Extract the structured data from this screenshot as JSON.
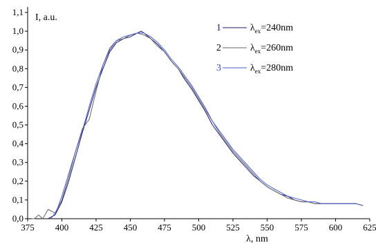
{
  "chart_data": {
    "type": "line",
    "xlabel": "λ, nm",
    "ylabel": "I, a.u.",
    "xlim": [
      375,
      625
    ],
    "ylim": [
      0.0,
      1.1
    ],
    "x_ticks": [
      375,
      400,
      425,
      450,
      475,
      500,
      525,
      550,
      575,
      600,
      625
    ],
    "x_tick_labels": [
      "375",
      "400",
      "425",
      "450",
      "475",
      "500",
      "525",
      "550",
      "575",
      "600",
      "625"
    ],
    "y_ticks": [
      0.0,
      0.1,
      0.2,
      0.3,
      0.4,
      0.5,
      0.6,
      0.7,
      0.8,
      0.9,
      1.0,
      1.1
    ],
    "y_tick_labels": [
      "0,0",
      "0,1",
      "0,2",
      "0,3",
      "0,4",
      "0,5",
      "0,6",
      "0,7",
      "0,8",
      "0,9",
      "1,0",
      "1,1"
    ],
    "grid": false,
    "legend_position": "top-right",
    "series": [
      {
        "number": "1",
        "label_prefix": "λ",
        "label_sub": "ex",
        "label_suffix": "=240nm",
        "color": "#1a1a6e",
        "number_color": "#1a1a6e",
        "x": [
          390,
          395,
          400,
          405,
          410,
          415,
          420,
          425,
          430,
          435,
          440,
          445,
          450,
          455,
          458,
          460,
          465,
          470,
          475,
          480,
          485,
          490,
          495,
          500,
          505,
          510,
          515,
          520,
          525,
          530,
          535,
          540,
          545,
          550,
          555,
          560,
          565,
          570,
          575,
          580,
          585,
          590,
          595,
          600,
          605,
          610,
          615,
          620
        ],
        "y": [
          0.0,
          0.02,
          0.09,
          0.2,
          0.33,
          0.46,
          0.58,
          0.7,
          0.8,
          0.89,
          0.94,
          0.96,
          0.97,
          0.99,
          1.0,
          0.99,
          0.96,
          0.93,
          0.89,
          0.84,
          0.8,
          0.74,
          0.69,
          0.63,
          0.57,
          0.5,
          0.45,
          0.4,
          0.35,
          0.31,
          0.27,
          0.23,
          0.2,
          0.17,
          0.15,
          0.13,
          0.12,
          0.1,
          0.09,
          0.09,
          0.08,
          0.08,
          0.08,
          0.08,
          0.08,
          0.08,
          0.08,
          0.07
        ]
      },
      {
        "number": "2",
        "label_prefix": "λ",
        "label_sub": "ex",
        "label_suffix": "=260nm",
        "color": "#666666",
        "number_color": "#000000",
        "x": [
          378,
          380,
          383,
          386,
          390,
          395,
          400,
          405,
          410,
          415,
          420,
          425,
          430,
          435,
          440,
          445,
          450,
          455,
          460,
          465,
          470,
          475,
          480,
          485,
          490,
          495,
          500,
          505,
          510,
          515,
          520,
          525,
          530,
          535,
          540,
          545,
          550,
          555,
          560,
          565,
          570,
          575,
          580,
          585,
          590,
          595,
          600,
          605,
          610,
          615,
          620
        ],
        "y": [
          0.0,
          0.0,
          0.02,
          0.0,
          0.05,
          0.03,
          0.1,
          0.22,
          0.36,
          0.48,
          0.53,
          0.68,
          0.82,
          0.91,
          0.95,
          0.96,
          0.98,
          0.99,
          0.98,
          0.96,
          0.92,
          0.89,
          0.84,
          0.8,
          0.75,
          0.7,
          0.64,
          0.58,
          0.52,
          0.46,
          0.41,
          0.36,
          0.32,
          0.28,
          0.24,
          0.2,
          0.17,
          0.15,
          0.13,
          0.11,
          0.1,
          0.09,
          0.09,
          0.08,
          0.08,
          0.08,
          0.08,
          0.08,
          0.08,
          0.08,
          0.07
        ]
      },
      {
        "number": "3",
        "label_prefix": "λ",
        "label_sub": "ex",
        "label_suffix": "=280nm",
        "color": "#4a5fd0",
        "number_color": "#2a3fc0",
        "x": [
          392,
          396,
          400,
          405,
          410,
          415,
          420,
          425,
          430,
          435,
          440,
          445,
          450,
          455,
          460,
          465,
          470,
          475,
          480,
          485,
          490,
          495,
          500,
          505,
          510,
          515,
          520,
          525,
          530,
          535,
          540,
          545,
          550,
          555,
          560,
          565,
          570,
          575,
          580,
          585,
          590,
          595,
          600,
          605,
          610,
          615,
          620
        ],
        "y": [
          0.0,
          0.04,
          0.12,
          0.24,
          0.36,
          0.47,
          0.6,
          0.72,
          0.82,
          0.9,
          0.95,
          0.97,
          0.98,
          0.99,
          0.99,
          0.97,
          0.94,
          0.9,
          0.85,
          0.81,
          0.76,
          0.71,
          0.65,
          0.59,
          0.52,
          0.47,
          0.42,
          0.37,
          0.33,
          0.29,
          0.25,
          0.21,
          0.18,
          0.16,
          0.14,
          0.12,
          0.11,
          0.1,
          0.09,
          0.09,
          0.08,
          0.08,
          0.08,
          0.08,
          0.08,
          0.08,
          0.07
        ]
      }
    ]
  }
}
